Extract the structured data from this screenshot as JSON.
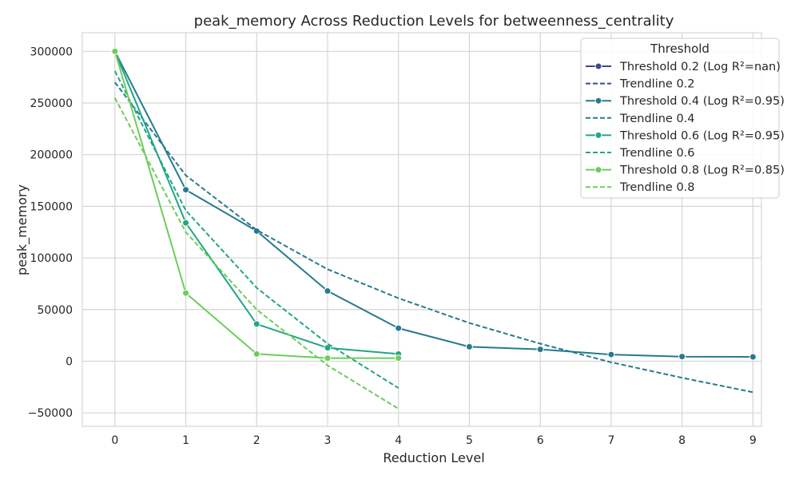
{
  "chart_data": {
    "type": "line",
    "title": "peak_memory Across Reduction Levels for betweenness_centrality",
    "xlabel": "Reduction Level",
    "ylabel": "peak_memory",
    "xlim": [
      -0.46,
      9.12
    ],
    "ylim": [
      -63000,
      318000
    ],
    "xticks": [
      0,
      1,
      2,
      3,
      4,
      5,
      6,
      7,
      8,
      9
    ],
    "yticks": [
      -50000,
      0,
      50000,
      100000,
      150000,
      200000,
      250000,
      300000
    ],
    "ytick_labels": [
      "−50000",
      "0",
      "50000",
      "100000",
      "150000",
      "200000",
      "250000",
      "300000"
    ],
    "grid": true,
    "legend": {
      "title": "Threshold",
      "position": "top-right"
    },
    "series": [
      {
        "name": "Threshold 0.2 (Log R²=nan)",
        "kind": "line-marker",
        "color": "#3b4a8c",
        "x": [
          0
        ],
        "y": [
          300000
        ]
      },
      {
        "name": "Trendline 0.2",
        "kind": "dashed",
        "color": "#3b4a8c",
        "x": [
          0
        ],
        "y": [
          270000
        ]
      },
      {
        "name": "Threshold 0.4 (Log R²=0.95)",
        "kind": "line-marker",
        "color": "#277a8e",
        "x": [
          0,
          1,
          2,
          3,
          4,
          5,
          6,
          7,
          8,
          9
        ],
        "y": [
          300000,
          166000,
          126000,
          68000,
          32000,
          14000,
          11500,
          6500,
          4500,
          4200
        ]
      },
      {
        "name": "Trendline 0.4",
        "kind": "dashed",
        "color": "#277a8e",
        "x": [
          0,
          1,
          2,
          3,
          4,
          5,
          6,
          7,
          8,
          9
        ],
        "y": [
          270000,
          180000,
          127000,
          89000,
          61000,
          37000,
          17000,
          -1000,
          -16000,
          -30000
        ]
      },
      {
        "name": "Threshold 0.6 (Log R²=0.95)",
        "kind": "line-marker",
        "color": "#21a685",
        "x": [
          0,
          1,
          2,
          3,
          4
        ],
        "y": [
          300000,
          134000,
          36000,
          13000,
          7000
        ]
      },
      {
        "name": "Trendline 0.6",
        "kind": "dashed",
        "color": "#21a685",
        "x": [
          0,
          1,
          2,
          3,
          4
        ],
        "y": [
          281000,
          146000,
          71000,
          17000,
          -26000
        ]
      },
      {
        "name": "Threshold 0.8 (Log R²=0.85)",
        "kind": "line-marker",
        "color": "#6ccd5a",
        "x": [
          0,
          1,
          2,
          3,
          4
        ],
        "y": [
          300000,
          66000,
          7000,
          3000,
          3000
        ]
      },
      {
        "name": "Trendline 0.8",
        "kind": "dashed",
        "color": "#6ccd5a",
        "x": [
          0,
          1,
          2,
          3,
          4
        ],
        "y": [
          255000,
          125000,
          50000,
          -4000,
          -46000
        ]
      }
    ]
  }
}
